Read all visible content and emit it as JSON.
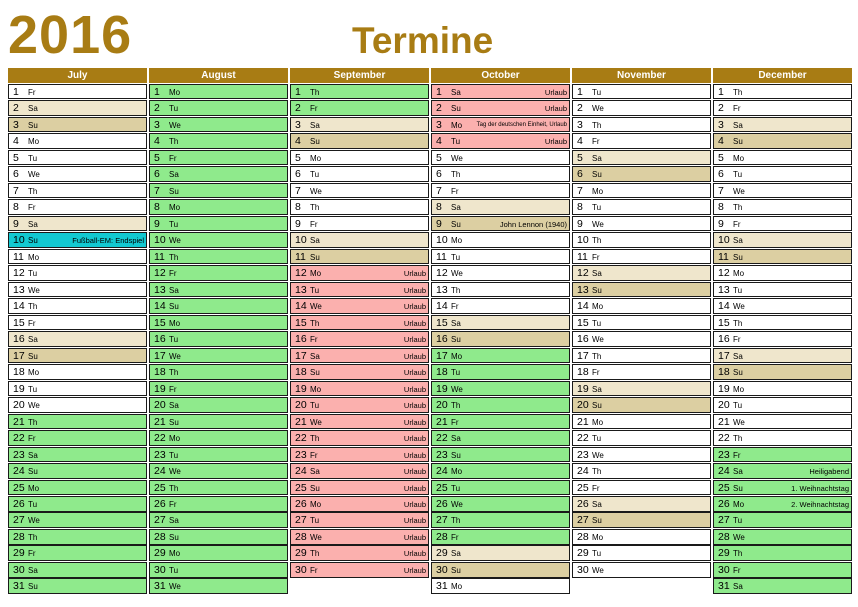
{
  "year": "2016",
  "title": "Termine",
  "colors": {
    "header": "#a87c14",
    "green": "#8fea8c",
    "saturday": "#efe6cc",
    "sunday": "#dccfa2",
    "vacation": "#fbb0ae",
    "highlight": "#12c9d1"
  },
  "months": [
    {
      "name": "July",
      "days": [
        {
          "n": "1",
          "wd": "Fr",
          "c": "white"
        },
        {
          "n": "2",
          "wd": "Sa",
          "c": "sat"
        },
        {
          "n": "3",
          "wd": "Su",
          "c": "sun"
        },
        {
          "n": "4",
          "wd": "Mo",
          "c": "white"
        },
        {
          "n": "5",
          "wd": "Tu",
          "c": "white"
        },
        {
          "n": "6",
          "wd": "We",
          "c": "white"
        },
        {
          "n": "7",
          "wd": "Th",
          "c": "white"
        },
        {
          "n": "8",
          "wd": "Fr",
          "c": "white"
        },
        {
          "n": "9",
          "wd": "Sa",
          "c": "sat"
        },
        {
          "n": "10",
          "wd": "Su",
          "c": "cyan",
          "note": "Fußball-EM: Endspiel"
        },
        {
          "n": "11",
          "wd": "Mo",
          "c": "white"
        },
        {
          "n": "12",
          "wd": "Tu",
          "c": "white"
        },
        {
          "n": "13",
          "wd": "We",
          "c": "white"
        },
        {
          "n": "14",
          "wd": "Th",
          "c": "white"
        },
        {
          "n": "15",
          "wd": "Fr",
          "c": "white"
        },
        {
          "n": "16",
          "wd": "Sa",
          "c": "sat"
        },
        {
          "n": "17",
          "wd": "Su",
          "c": "sun"
        },
        {
          "n": "18",
          "wd": "Mo",
          "c": "white"
        },
        {
          "n": "19",
          "wd": "Tu",
          "c": "white"
        },
        {
          "n": "20",
          "wd": "We",
          "c": "white"
        },
        {
          "n": "21",
          "wd": "Th",
          "c": "green"
        },
        {
          "n": "22",
          "wd": "Fr",
          "c": "green"
        },
        {
          "n": "23",
          "wd": "Sa",
          "c": "green"
        },
        {
          "n": "24",
          "wd": "Su",
          "c": "green"
        },
        {
          "n": "25",
          "wd": "Mo",
          "c": "green"
        },
        {
          "n": "26",
          "wd": "Tu",
          "c": "green"
        },
        {
          "n": "27",
          "wd": "We",
          "c": "green"
        },
        {
          "n": "28",
          "wd": "Th",
          "c": "green"
        },
        {
          "n": "29",
          "wd": "Fr",
          "c": "green"
        },
        {
          "n": "30",
          "wd": "Sa",
          "c": "green"
        },
        {
          "n": "31",
          "wd": "Su",
          "c": "green"
        }
      ]
    },
    {
      "name": "August",
      "days": [
        {
          "n": "1",
          "wd": "Mo",
          "c": "green"
        },
        {
          "n": "2",
          "wd": "Tu",
          "c": "green"
        },
        {
          "n": "3",
          "wd": "We",
          "c": "green"
        },
        {
          "n": "4",
          "wd": "Th",
          "c": "green"
        },
        {
          "n": "5",
          "wd": "Fr",
          "c": "green"
        },
        {
          "n": "6",
          "wd": "Sa",
          "c": "green"
        },
        {
          "n": "7",
          "wd": "Su",
          "c": "green"
        },
        {
          "n": "8",
          "wd": "Mo",
          "c": "green"
        },
        {
          "n": "9",
          "wd": "Tu",
          "c": "green"
        },
        {
          "n": "10",
          "wd": "We",
          "c": "green"
        },
        {
          "n": "11",
          "wd": "Th",
          "c": "green"
        },
        {
          "n": "12",
          "wd": "Fr",
          "c": "green"
        },
        {
          "n": "13",
          "wd": "Sa",
          "c": "green"
        },
        {
          "n": "14",
          "wd": "Su",
          "c": "green"
        },
        {
          "n": "15",
          "wd": "Mo",
          "c": "green"
        },
        {
          "n": "16",
          "wd": "Tu",
          "c": "green"
        },
        {
          "n": "17",
          "wd": "We",
          "c": "green"
        },
        {
          "n": "18",
          "wd": "Th",
          "c": "green"
        },
        {
          "n": "19",
          "wd": "Fr",
          "c": "green"
        },
        {
          "n": "20",
          "wd": "Sa",
          "c": "green"
        },
        {
          "n": "21",
          "wd": "Su",
          "c": "green"
        },
        {
          "n": "22",
          "wd": "Mo",
          "c": "green"
        },
        {
          "n": "23",
          "wd": "Tu",
          "c": "green"
        },
        {
          "n": "24",
          "wd": "We",
          "c": "green"
        },
        {
          "n": "25",
          "wd": "Th",
          "c": "green"
        },
        {
          "n": "26",
          "wd": "Fr",
          "c": "green"
        },
        {
          "n": "27",
          "wd": "Sa",
          "c": "green"
        },
        {
          "n": "28",
          "wd": "Su",
          "c": "green"
        },
        {
          "n": "29",
          "wd": "Mo",
          "c": "green"
        },
        {
          "n": "30",
          "wd": "Tu",
          "c": "green"
        },
        {
          "n": "31",
          "wd": "We",
          "c": "green"
        }
      ]
    },
    {
      "name": "September",
      "days": [
        {
          "n": "1",
          "wd": "Th",
          "c": "green"
        },
        {
          "n": "2",
          "wd": "Fr",
          "c": "green"
        },
        {
          "n": "3",
          "wd": "Sa",
          "c": "sat"
        },
        {
          "n": "4",
          "wd": "Su",
          "c": "sun"
        },
        {
          "n": "5",
          "wd": "Mo",
          "c": "white"
        },
        {
          "n": "6",
          "wd": "Tu",
          "c": "white"
        },
        {
          "n": "7",
          "wd": "We",
          "c": "white"
        },
        {
          "n": "8",
          "wd": "Th",
          "c": "white"
        },
        {
          "n": "9",
          "wd": "Fr",
          "c": "white"
        },
        {
          "n": "10",
          "wd": "Sa",
          "c": "sat"
        },
        {
          "n": "11",
          "wd": "Su",
          "c": "sun"
        },
        {
          "n": "12",
          "wd": "Mo",
          "c": "red",
          "note": "Urlaub"
        },
        {
          "n": "13",
          "wd": "Tu",
          "c": "red",
          "note": "Urlaub"
        },
        {
          "n": "14",
          "wd": "We",
          "c": "red",
          "note": "Urlaub"
        },
        {
          "n": "15",
          "wd": "Th",
          "c": "red",
          "note": "Urlaub"
        },
        {
          "n": "16",
          "wd": "Fr",
          "c": "red",
          "note": "Urlaub"
        },
        {
          "n": "17",
          "wd": "Sa",
          "c": "red",
          "note": "Urlaub"
        },
        {
          "n": "18",
          "wd": "Su",
          "c": "red",
          "note": "Urlaub"
        },
        {
          "n": "19",
          "wd": "Mo",
          "c": "red",
          "note": "Urlaub"
        },
        {
          "n": "20",
          "wd": "Tu",
          "c": "red",
          "note": "Urlaub"
        },
        {
          "n": "21",
          "wd": "We",
          "c": "red",
          "note": "Urlaub"
        },
        {
          "n": "22",
          "wd": "Th",
          "c": "red",
          "note": "Urlaub"
        },
        {
          "n": "23",
          "wd": "Fr",
          "c": "red",
          "note": "Urlaub"
        },
        {
          "n": "24",
          "wd": "Sa",
          "c": "red",
          "note": "Urlaub"
        },
        {
          "n": "25",
          "wd": "Su",
          "c": "red",
          "note": "Urlaub"
        },
        {
          "n": "26",
          "wd": "Mo",
          "c": "red",
          "note": "Urlaub"
        },
        {
          "n": "27",
          "wd": "Tu",
          "c": "red",
          "note": "Urlaub"
        },
        {
          "n": "28",
          "wd": "We",
          "c": "red",
          "note": "Urlaub"
        },
        {
          "n": "29",
          "wd": "Th",
          "c": "red",
          "note": "Urlaub"
        },
        {
          "n": "30",
          "wd": "Fr",
          "c": "red",
          "note": "Urlaub"
        }
      ]
    },
    {
      "name": "October",
      "days": [
        {
          "n": "1",
          "wd": "Sa",
          "c": "red",
          "note": "Urlaub"
        },
        {
          "n": "2",
          "wd": "Su",
          "c": "red",
          "note": "Urlaub"
        },
        {
          "n": "3",
          "wd": "Mo",
          "c": "red",
          "note": "Tag der deutschen Einheit, Urlaub",
          "small": true
        },
        {
          "n": "4",
          "wd": "Tu",
          "c": "red",
          "note": "Urlaub"
        },
        {
          "n": "5",
          "wd": "We",
          "c": "white"
        },
        {
          "n": "6",
          "wd": "Th",
          "c": "white"
        },
        {
          "n": "7",
          "wd": "Fr",
          "c": "white"
        },
        {
          "n": "8",
          "wd": "Sa",
          "c": "sat"
        },
        {
          "n": "9",
          "wd": "Su",
          "c": "sun",
          "note": "John Lennon (1940)"
        },
        {
          "n": "10",
          "wd": "Mo",
          "c": "white"
        },
        {
          "n": "11",
          "wd": "Tu",
          "c": "white"
        },
        {
          "n": "12",
          "wd": "We",
          "c": "white"
        },
        {
          "n": "13",
          "wd": "Th",
          "c": "white"
        },
        {
          "n": "14",
          "wd": "Fr",
          "c": "white"
        },
        {
          "n": "15",
          "wd": "Sa",
          "c": "sat"
        },
        {
          "n": "16",
          "wd": "Su",
          "c": "sun"
        },
        {
          "n": "17",
          "wd": "Mo",
          "c": "green"
        },
        {
          "n": "18",
          "wd": "Tu",
          "c": "green"
        },
        {
          "n": "19",
          "wd": "We",
          "c": "green"
        },
        {
          "n": "20",
          "wd": "Th",
          "c": "green"
        },
        {
          "n": "21",
          "wd": "Fr",
          "c": "green"
        },
        {
          "n": "22",
          "wd": "Sa",
          "c": "green"
        },
        {
          "n": "23",
          "wd": "Su",
          "c": "green"
        },
        {
          "n": "24",
          "wd": "Mo",
          "c": "green"
        },
        {
          "n": "25",
          "wd": "Tu",
          "c": "green"
        },
        {
          "n": "26",
          "wd": "We",
          "c": "green"
        },
        {
          "n": "27",
          "wd": "Th",
          "c": "green"
        },
        {
          "n": "28",
          "wd": "Fr",
          "c": "green"
        },
        {
          "n": "29",
          "wd": "Sa",
          "c": "sat"
        },
        {
          "n": "30",
          "wd": "Su",
          "c": "sun"
        },
        {
          "n": "31",
          "wd": "Mo",
          "c": "white"
        }
      ]
    },
    {
      "name": "November",
      "days": [
        {
          "n": "1",
          "wd": "Tu",
          "c": "white"
        },
        {
          "n": "2",
          "wd": "We",
          "c": "white"
        },
        {
          "n": "3",
          "wd": "Th",
          "c": "white"
        },
        {
          "n": "4",
          "wd": "Fr",
          "c": "white"
        },
        {
          "n": "5",
          "wd": "Sa",
          "c": "sat"
        },
        {
          "n": "6",
          "wd": "Su",
          "c": "sun"
        },
        {
          "n": "7",
          "wd": "Mo",
          "c": "white"
        },
        {
          "n": "8",
          "wd": "Tu",
          "c": "white"
        },
        {
          "n": "9",
          "wd": "We",
          "c": "white"
        },
        {
          "n": "10",
          "wd": "Th",
          "c": "white"
        },
        {
          "n": "11",
          "wd": "Fr",
          "c": "white"
        },
        {
          "n": "12",
          "wd": "Sa",
          "c": "sat"
        },
        {
          "n": "13",
          "wd": "Su",
          "c": "sun"
        },
        {
          "n": "14",
          "wd": "Mo",
          "c": "white"
        },
        {
          "n": "15",
          "wd": "Tu",
          "c": "white"
        },
        {
          "n": "16",
          "wd": "We",
          "c": "white"
        },
        {
          "n": "17",
          "wd": "Th",
          "c": "white"
        },
        {
          "n": "18",
          "wd": "Fr",
          "c": "white"
        },
        {
          "n": "19",
          "wd": "Sa",
          "c": "sat"
        },
        {
          "n": "20",
          "wd": "Su",
          "c": "sun"
        },
        {
          "n": "21",
          "wd": "Mo",
          "c": "white"
        },
        {
          "n": "22",
          "wd": "Tu",
          "c": "white"
        },
        {
          "n": "23",
          "wd": "We",
          "c": "white"
        },
        {
          "n": "24",
          "wd": "Th",
          "c": "white"
        },
        {
          "n": "25",
          "wd": "Fr",
          "c": "white"
        },
        {
          "n": "26",
          "wd": "Sa",
          "c": "sat"
        },
        {
          "n": "27",
          "wd": "Su",
          "c": "sun"
        },
        {
          "n": "28",
          "wd": "Mo",
          "c": "white"
        },
        {
          "n": "29",
          "wd": "Tu",
          "c": "white"
        },
        {
          "n": "30",
          "wd": "We",
          "c": "white"
        }
      ]
    },
    {
      "name": "December",
      "days": [
        {
          "n": "1",
          "wd": "Th",
          "c": "white"
        },
        {
          "n": "2",
          "wd": "Fr",
          "c": "white"
        },
        {
          "n": "3",
          "wd": "Sa",
          "c": "sat"
        },
        {
          "n": "4",
          "wd": "Su",
          "c": "sun"
        },
        {
          "n": "5",
          "wd": "Mo",
          "c": "white"
        },
        {
          "n": "6",
          "wd": "Tu",
          "c": "white"
        },
        {
          "n": "7",
          "wd": "We",
          "c": "white"
        },
        {
          "n": "8",
          "wd": "Th",
          "c": "white"
        },
        {
          "n": "9",
          "wd": "Fr",
          "c": "white"
        },
        {
          "n": "10",
          "wd": "Sa",
          "c": "sat"
        },
        {
          "n": "11",
          "wd": "Su",
          "c": "sun"
        },
        {
          "n": "12",
          "wd": "Mo",
          "c": "white"
        },
        {
          "n": "13",
          "wd": "Tu",
          "c": "white"
        },
        {
          "n": "14",
          "wd": "We",
          "c": "white"
        },
        {
          "n": "15",
          "wd": "Th",
          "c": "white"
        },
        {
          "n": "16",
          "wd": "Fr",
          "c": "white"
        },
        {
          "n": "17",
          "wd": "Sa",
          "c": "sat"
        },
        {
          "n": "18",
          "wd": "Su",
          "c": "sun"
        },
        {
          "n": "19",
          "wd": "Mo",
          "c": "white"
        },
        {
          "n": "20",
          "wd": "Tu",
          "c": "white"
        },
        {
          "n": "21",
          "wd": "We",
          "c": "white"
        },
        {
          "n": "22",
          "wd": "Th",
          "c": "white"
        },
        {
          "n": "23",
          "wd": "Fr",
          "c": "green"
        },
        {
          "n": "24",
          "wd": "Sa",
          "c": "green",
          "note": "Heiligabend"
        },
        {
          "n": "25",
          "wd": "Su",
          "c": "green",
          "note": "1. Weihnachtstag"
        },
        {
          "n": "26",
          "wd": "Mo",
          "c": "green",
          "note": "2. Weihnachtstag"
        },
        {
          "n": "27",
          "wd": "Tu",
          "c": "green"
        },
        {
          "n": "28",
          "wd": "We",
          "c": "green"
        },
        {
          "n": "29",
          "wd": "Th",
          "c": "green"
        },
        {
          "n": "30",
          "wd": "Fr",
          "c": "green"
        },
        {
          "n": "31",
          "wd": "Sa",
          "c": "green"
        }
      ]
    }
  ]
}
